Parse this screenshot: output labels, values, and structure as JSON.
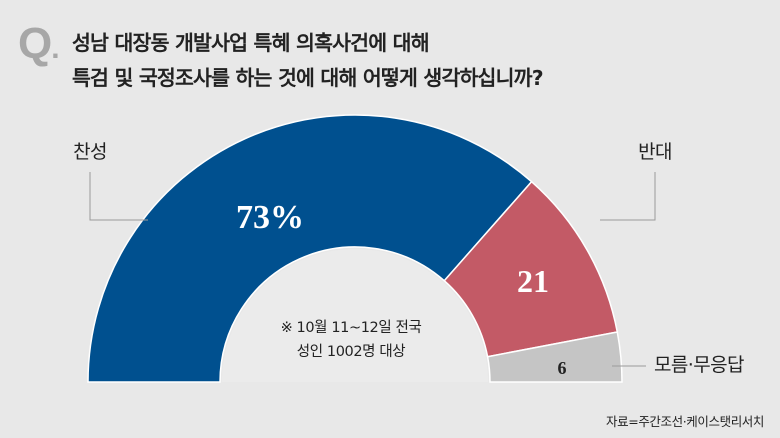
{
  "question": {
    "mark": "Q",
    "dot": ".",
    "line1": "성남 대장동 개발사업 특혜 의혹사건에 대해",
    "line2": "특검 및 국정조사를 하는 것에 대해 어떻게 생각하십니까?"
  },
  "chart_data": {
    "type": "pie",
    "subtype": "half-donut",
    "categories": [
      "찬성",
      "반대",
      "모름·무응답"
    ],
    "values": [
      73,
      21,
      6
    ],
    "value_labels": [
      "73%",
      "21",
      "6"
    ],
    "colors": [
      "#00508f",
      "#c35a66",
      "#c5c5c5"
    ],
    "label_colors": [
      "#ffffff",
      "#ffffff",
      "#222222"
    ]
  },
  "note": {
    "line1": "※ 10월 11~12일 전국",
    "line2": "성인 1002명 대상"
  },
  "source": "자료=주간조선·케이스탯리서치"
}
